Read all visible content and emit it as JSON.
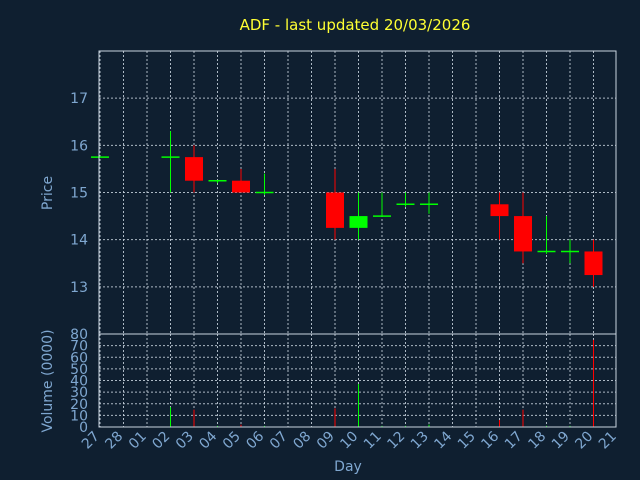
{
  "chart_data": {
    "type": "candlestick",
    "title": "ADF - last updated 20/03/2026",
    "xlabel": "Day",
    "price_panel": {
      "ylabel": "Price",
      "ylim": [
        12,
        18
      ],
      "yticks": [
        13,
        14,
        15,
        16,
        17
      ]
    },
    "volume_panel": {
      "ylabel": "Volume (0000)",
      "ylim": [
        0,
        80
      ],
      "yticks": [
        0,
        10,
        20,
        30,
        40,
        50,
        60,
        70,
        80
      ]
    },
    "x_tick_labels": [
      "27",
      "28",
      "01",
      "02",
      "03",
      "04",
      "05",
      "06",
      "07",
      "08",
      "09",
      "10",
      "11",
      "12",
      "13",
      "14",
      "15",
      "16",
      "17",
      "18",
      "19",
      "20",
      "21"
    ],
    "candles": [
      {
        "day": "27",
        "open": 15.75,
        "high": 15.75,
        "low": 15.75,
        "close": 15.75,
        "volume": 0
      },
      {
        "day": "02",
        "open": 15.75,
        "high": 16.3,
        "low": 15.0,
        "close": 15.75,
        "volume": 17
      },
      {
        "day": "03",
        "open": 15.75,
        "high": 16.0,
        "low": 15.0,
        "close": 15.25,
        "volume": 15
      },
      {
        "day": "04",
        "open": 15.25,
        "high": 15.25,
        "low": 15.2,
        "close": 15.25,
        "volume": 1
      },
      {
        "day": "05",
        "open": 15.25,
        "high": 15.5,
        "low": 15.0,
        "close": 15.0,
        "volume": 2
      },
      {
        "day": "06",
        "open": 15.0,
        "high": 15.4,
        "low": 14.95,
        "close": 15.0,
        "volume": 1
      },
      {
        "day": "09",
        "open": 15.0,
        "high": 15.5,
        "low": 14.0,
        "close": 14.25,
        "volume": 16
      },
      {
        "day": "10",
        "open": 14.25,
        "high": 15.0,
        "low": 14.0,
        "close": 14.5,
        "volume": 37
      },
      {
        "day": "11",
        "open": 14.5,
        "high": 15.0,
        "low": 14.5,
        "close": 14.5,
        "volume": 1
      },
      {
        "day": "12",
        "open": 14.75,
        "high": 15.0,
        "low": 14.7,
        "close": 14.75,
        "volume": 1
      },
      {
        "day": "13",
        "open": 14.75,
        "high": 15.0,
        "low": 14.55,
        "close": 14.75,
        "volume": 2
      },
      {
        "day": "16",
        "open": 14.75,
        "high": 15.0,
        "low": 14.0,
        "close": 14.5,
        "volume": 6
      },
      {
        "day": "17",
        "open": 14.5,
        "high": 15.0,
        "low": 13.5,
        "close": 13.75,
        "volume": 15
      },
      {
        "day": "18",
        "open": 13.75,
        "high": 14.5,
        "low": 13.7,
        "close": 13.75,
        "volume": 1
      },
      {
        "day": "19",
        "open": 13.75,
        "high": 14.0,
        "low": 13.5,
        "close": 13.75,
        "volume": 1
      },
      {
        "day": "20",
        "open": 13.75,
        "high": 14.0,
        "low": 13.0,
        "close": 13.25,
        "volume": 75
      }
    ],
    "colors": {
      "up": "#00ff00",
      "down": "#ff0000",
      "title": "#ffff33",
      "axis_text": "#7fa7d0",
      "grid": "#c9d4e0",
      "background": "#0f1f30"
    }
  }
}
